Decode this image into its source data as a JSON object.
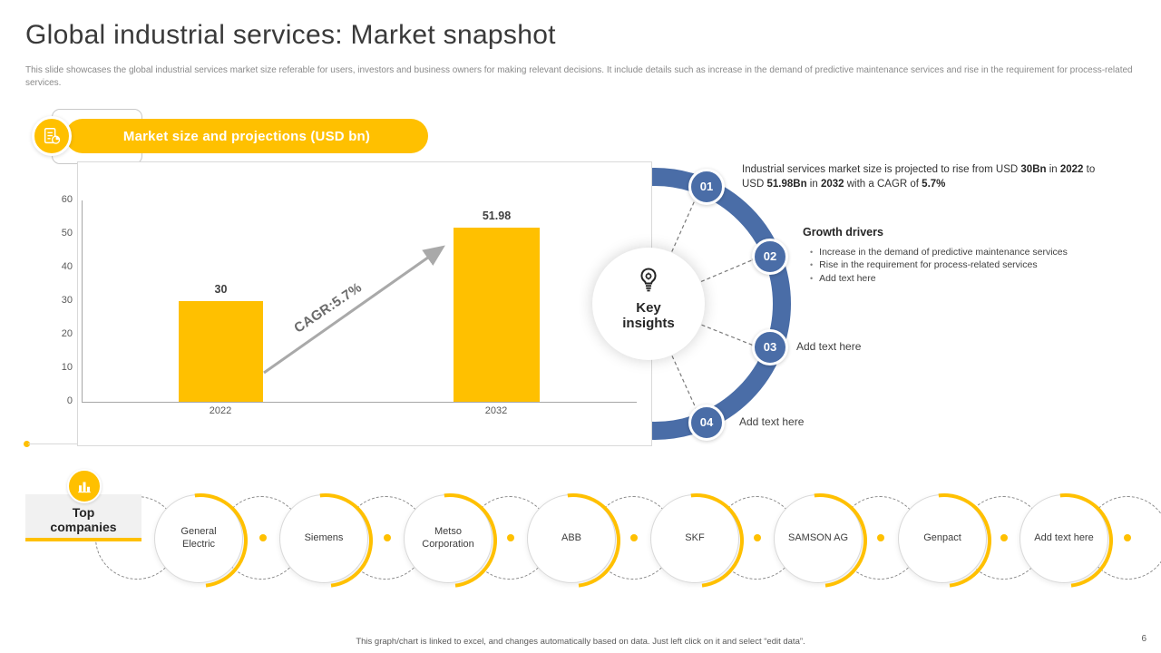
{
  "slide": {
    "title": "Global industrial services: Market snapshot",
    "description": "This slide showcases the global industrial services market size referable for users, investors and business owners for making relevant decisions. It include details such as increase in the demand of predictive maintenance services and rise in the requirement for process-related services.",
    "footer_note": "This graph/chart is linked to excel, and changes automatically based on data. Just left click on it and select “edit data”.",
    "page_number": "6"
  },
  "colors": {
    "accent_yellow": "#FFC000",
    "accent_blue": "#4A6DA7",
    "text_dark": "#3A3A3A",
    "text_gray": "#8A8A8A"
  },
  "chart_section": {
    "banner_label": "Market size and projections (USD bn)",
    "banner_icon": "chart-document-icon"
  },
  "chart_data": {
    "type": "bar",
    "title": "Market size and projections (USD bn)",
    "categories": [
      "2022",
      "2032"
    ],
    "values": [
      30,
      51.98
    ],
    "bar_labels": [
      "30",
      "51.98"
    ],
    "ylim": [
      0,
      60
    ],
    "yticks": [
      60,
      50,
      40,
      30,
      20,
      10,
      0
    ],
    "annotation": "CAGR:5.7%",
    "bar_color": "#FFC000",
    "grid": false,
    "legend": false
  },
  "key_insights": {
    "center_title": "Key insights",
    "center_icon": "bulb-gear-icon",
    "items": [
      {
        "number": "01",
        "runs": {
          "r0": "Industrial services market size is projected to rise from USD ",
          "r1": "30Bn",
          "r2": " in ",
          "r3": "2022",
          "r4": " to USD ",
          "r5": "51.98Bn",
          "r6": " in ",
          "r7": "2032",
          "r8": " with a CAGR of ",
          "r9": "5.7%"
        }
      },
      {
        "number": "02",
        "heading": "Growth drivers",
        "bullets": [
          "Increase in the demand of predictive maintenance services",
          "Rise in the requirement for process-related services",
          "Add text here"
        ]
      },
      {
        "number": "03",
        "label": "Add text here"
      },
      {
        "number": "04",
        "label": "Add text here"
      }
    ]
  },
  "top_companies": {
    "label": "Top companies",
    "icon": "buildings-icon",
    "companies": [
      "General Electric",
      "Siemens",
      "Metso Corporation",
      "ABB",
      "SKF",
      "SAMSON AG",
      "Genpact",
      "Add text here"
    ]
  }
}
